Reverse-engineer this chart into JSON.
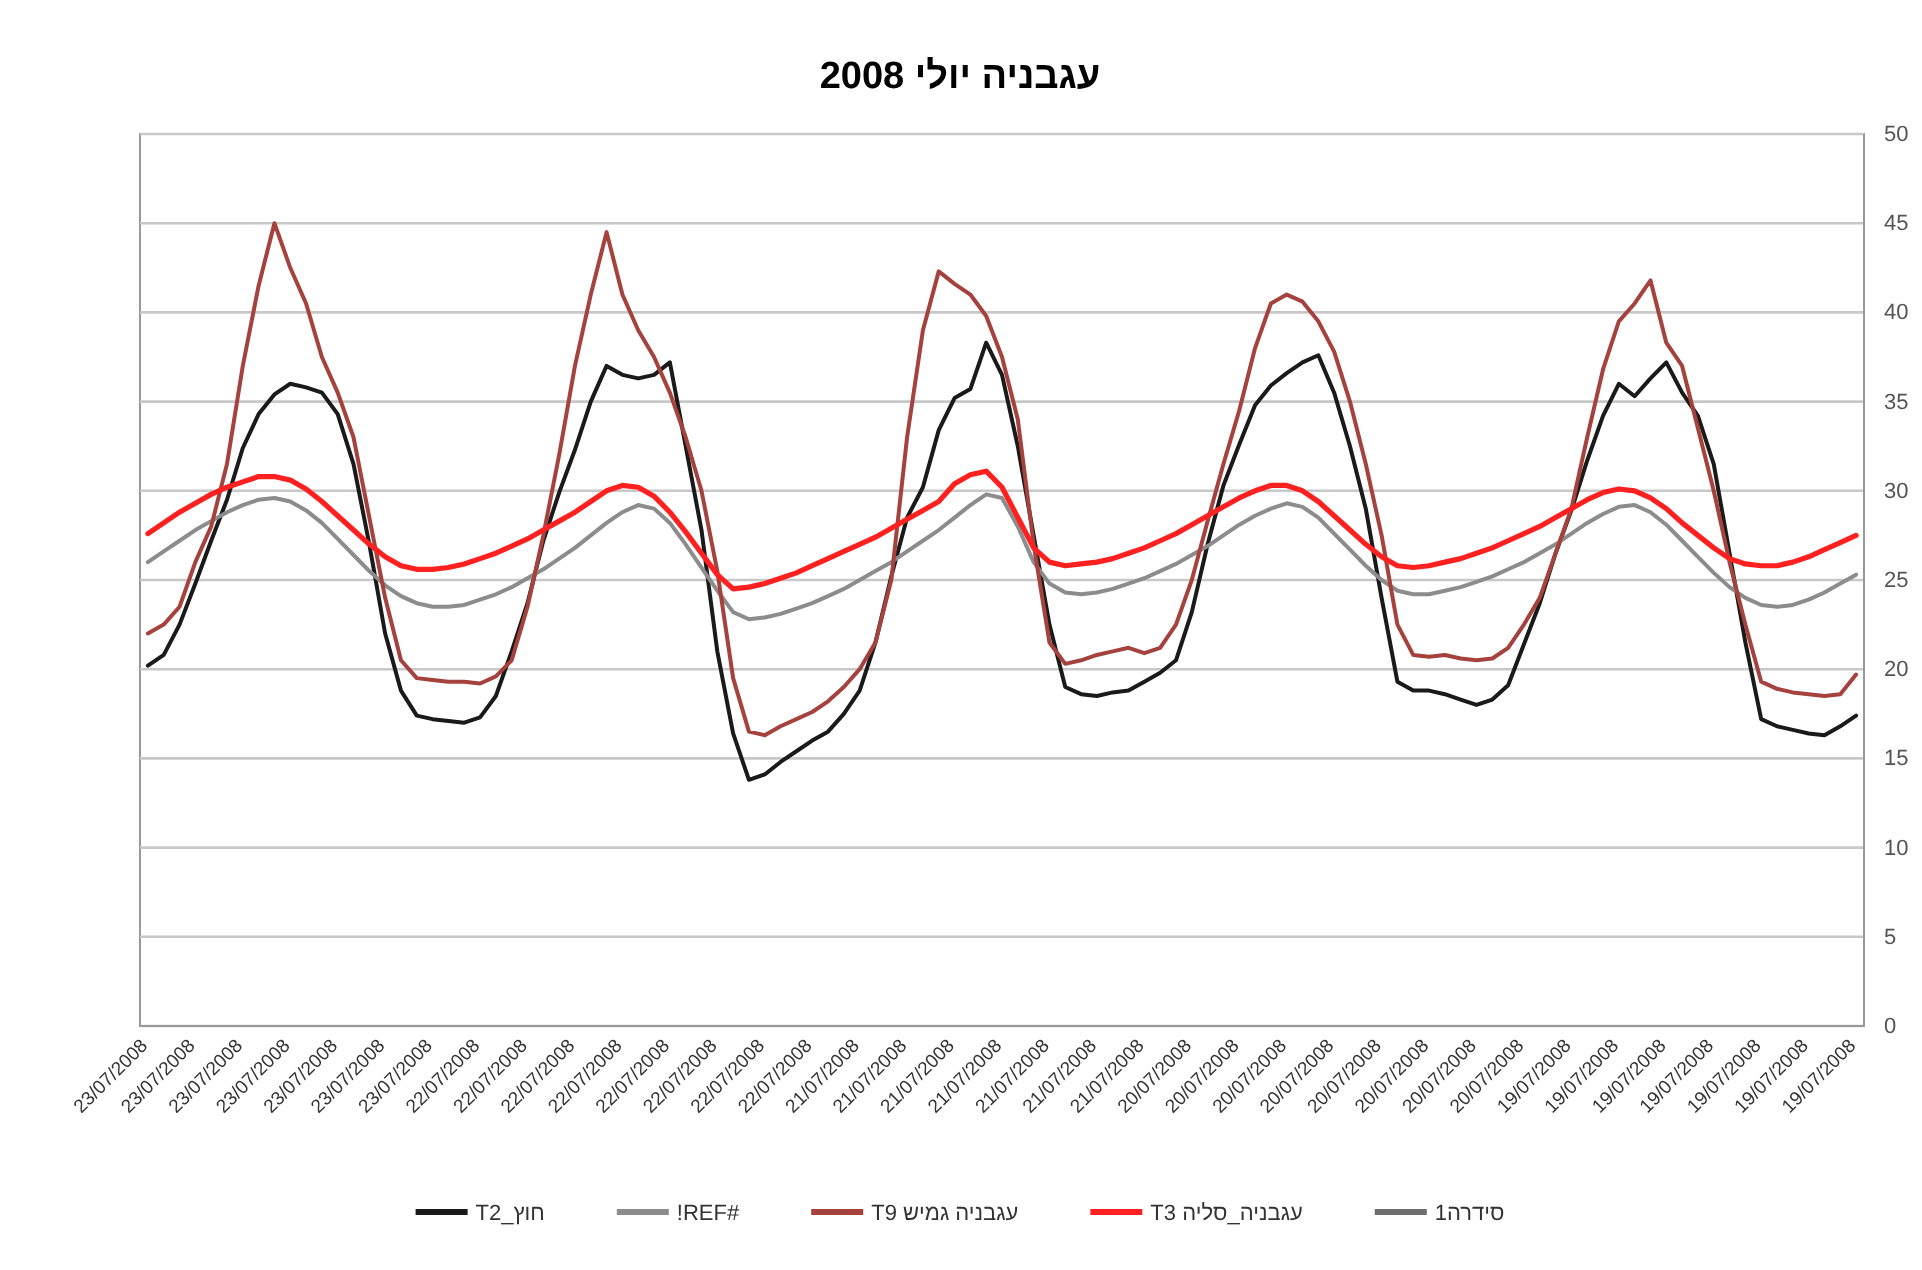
{
  "chart_data": {
    "type": "line",
    "title": "עגבניה יולי 2008",
    "categories": [
      "23/07/2008",
      null,
      null,
      "23/07/2008",
      null,
      null,
      "23/07/2008",
      null,
      null,
      "23/07/2008",
      null,
      null,
      "23/07/2008",
      null,
      null,
      "23/07/2008",
      null,
      null,
      "23/07/2008",
      null,
      null,
      "22/07/2008",
      null,
      null,
      "22/07/2008",
      null,
      null,
      "22/07/2008",
      null,
      null,
      "22/07/2008",
      null,
      null,
      "22/07/2008",
      null,
      null,
      "22/07/2008",
      null,
      null,
      "22/07/2008",
      null,
      null,
      "22/07/2008",
      null,
      null,
      "21/07/2008",
      null,
      null,
      "21/07/2008",
      null,
      null,
      "21/07/2008",
      null,
      null,
      "21/07/2008",
      null,
      null,
      "21/07/2008",
      null,
      null,
      "21/07/2008",
      null,
      null,
      "21/07/2008",
      null,
      null,
      "20/07/2008",
      null,
      null,
      "20/07/2008",
      null,
      null,
      "20/07/2008",
      null,
      null,
      "20/07/2008",
      null,
      null,
      "20/07/2008",
      null,
      null,
      "20/07/2008",
      null,
      null,
      "20/07/2008",
      null,
      null,
      "20/07/2008",
      null,
      null,
      "19/07/2008",
      null,
      null,
      "19/07/2008",
      null,
      null,
      "19/07/2008",
      null,
      null,
      "19/07/2008",
      null,
      null,
      "19/07/2008",
      null,
      null,
      "19/07/2008",
      null,
      null,
      "19/07/2008"
    ],
    "series": [
      {
        "name": "חוץ_T2",
        "color": "#1a1a1a",
        "values": [
          20.2,
          20.8,
          22.5,
          24.8,
          27.2,
          29.5,
          32.4,
          34.3,
          35.4,
          36.0,
          35.8,
          35.5,
          34.3,
          31.5,
          27,
          22,
          18.8,
          17.4,
          17.2,
          17.1,
          17,
          17.3,
          18.5,
          21,
          23.7,
          27.2,
          29.9,
          32.3,
          35,
          37,
          36.5,
          36.3,
          36.5,
          37.2,
          32.5,
          27.8,
          21,
          16.4,
          13.8,
          14.1,
          14.8,
          15.4,
          16,
          16.5,
          17.5,
          18.8,
          21.5,
          25.2,
          28.5,
          30.2,
          33.4,
          35.2,
          35.7,
          38.3,
          36.5,
          32.5,
          27.5,
          22.5,
          19,
          18.6,
          18.5,
          18.7,
          18.8,
          19.3,
          19.8,
          20.5,
          23.2,
          27,
          30.3,
          32.6,
          34.8,
          35.9,
          36.6,
          37.2,
          37.6,
          35.5,
          32.5,
          29,
          24,
          19.3,
          18.8,
          18.8,
          18.6,
          18.3,
          18,
          18.3,
          19.1,
          21.4,
          23.7,
          26.5,
          28.9,
          31.7,
          34.2,
          36,
          35.3,
          36.3,
          37.2,
          35.5,
          34.2,
          31.5,
          26.5,
          21.5,
          17.2,
          16.8,
          16.6,
          16.4,
          16.3,
          16.8,
          17.4
        ]
      },
      {
        "name": "#REF!",
        "color": "#8c8c8c",
        "values": [
          26,
          26.6,
          27.2,
          27.8,
          28.3,
          28.8,
          29.2,
          29.5,
          29.6,
          29.4,
          28.9,
          28.2,
          27.3,
          26.4,
          25.5,
          24.7,
          24.1,
          23.7,
          23.5,
          23.5,
          23.6,
          23.9,
          24.2,
          24.6,
          25.1,
          25.6,
          26.2,
          26.8,
          27.5,
          28.2,
          28.8,
          29.2,
          29,
          28.2,
          27,
          25.7,
          24.4,
          23.2,
          22.8,
          22.9,
          23.1,
          23.4,
          23.7,
          24.1,
          24.5,
          25,
          25.5,
          26,
          26.6,
          27.2,
          27.8,
          28.5,
          29.2,
          29.8,
          29.6,
          28,
          26,
          24.8,
          24.3,
          24.2,
          24.3,
          24.5,
          24.8,
          25.1,
          25.5,
          25.9,
          26.4,
          26.9,
          27.5,
          28.1,
          28.6,
          29,
          29.3,
          29.1,
          28.5,
          27.6,
          26.7,
          25.8,
          25,
          24.4,
          24.2,
          24.2,
          24.4,
          24.6,
          24.9,
          25.2,
          25.6,
          26,
          26.5,
          27,
          27.6,
          28.2,
          28.7,
          29.1,
          29.2,
          28.8,
          28.1,
          27.2,
          26.3,
          25.4,
          24.6,
          24,
          23.6,
          23.5,
          23.6,
          23.9,
          24.3,
          24.8,
          25.3
        ]
      },
      {
        "name": "עגבניה גמיש T9",
        "color": "#a5423e",
        "values": [
          22,
          22.5,
          23.5,
          26,
          28,
          31.5,
          37,
          41.5,
          45,
          42.5,
          40.5,
          37.5,
          35.5,
          33,
          28.5,
          24,
          20.5,
          19.5,
          19.4,
          19.3,
          19.3,
          19.2,
          19.6,
          20.5,
          23.5,
          27.5,
          32,
          37,
          41,
          44.5,
          41,
          39,
          37.5,
          35.5,
          33,
          30,
          25.5,
          19.5,
          16.5,
          16.3,
          16.8,
          17.2,
          17.6,
          18.2,
          19,
          20,
          21.5,
          25,
          33,
          39,
          42.3,
          41.6,
          41,
          39.8,
          37.5,
          34,
          27,
          21.5,
          20.3,
          20.5,
          20.8,
          21,
          21.2,
          20.9,
          21.2,
          22.5,
          25,
          28.3,
          31.5,
          34.5,
          38,
          40.5,
          41,
          40.6,
          39.5,
          37.8,
          35,
          31.5,
          27.5,
          22.5,
          20.8,
          20.7,
          20.8,
          20.6,
          20.5,
          20.6,
          21.2,
          22.5,
          24,
          26.5,
          29,
          33,
          36.8,
          39.5,
          40.5,
          41.8,
          38.3,
          37,
          33.5,
          30,
          26,
          22.5,
          19.3,
          18.9,
          18.7,
          18.6,
          18.5,
          18.6,
          19.7
        ]
      },
      {
        "name": "עגבניה_סליה T3",
        "color": "#ff2020",
        "values": [
          27.6,
          28.2,
          28.8,
          29.3,
          29.8,
          30.2,
          30.5,
          30.8,
          30.8,
          30.6,
          30.1,
          29.4,
          28.6,
          27.8,
          27,
          26.3,
          25.8,
          25.6,
          25.6,
          25.7,
          25.9,
          26.2,
          26.5,
          26.9,
          27.3,
          27.8,
          28.3,
          28.8,
          29.4,
          30,
          30.3,
          30.2,
          29.7,
          28.8,
          27.7,
          26.5,
          25.3,
          24.5,
          24.6,
          24.8,
          25.1,
          25.4,
          25.8,
          26.2,
          26.6,
          27,
          27.4,
          27.9,
          28.4,
          28.9,
          29.4,
          30.4,
          30.9,
          31.1,
          30.2,
          28.5,
          26.8,
          26,
          25.8,
          25.9,
          26,
          26.2,
          26.5,
          26.8,
          27.2,
          27.6,
          28.1,
          28.6,
          29.1,
          29.6,
          30,
          30.3,
          30.3,
          30,
          29.4,
          28.6,
          27.8,
          27,
          26.3,
          25.8,
          25.7,
          25.8,
          26,
          26.2,
          26.5,
          26.8,
          27.2,
          27.6,
          28,
          28.5,
          29,
          29.5,
          29.9,
          30.1,
          30,
          29.6,
          29,
          28.2,
          27.5,
          26.8,
          26.2,
          25.9,
          25.8,
          25.8,
          26,
          26.3,
          26.7,
          27.1,
          27.5
        ]
      },
      {
        "name": "סידרה1",
        "color": "#6e6e6e",
        "values": [
          null,
          null,
          null,
          null,
          null,
          null,
          null,
          null,
          null,
          null,
          null,
          null,
          null,
          null,
          null,
          null,
          null,
          null,
          null,
          null,
          null,
          null,
          null,
          null,
          null,
          null,
          null,
          null,
          null,
          null,
          null,
          null,
          null,
          null,
          null,
          null,
          null,
          null,
          null,
          null,
          null,
          null,
          null,
          null,
          null,
          null,
          null,
          null,
          null,
          null,
          null,
          null,
          null,
          null,
          null,
          null,
          null,
          null,
          null,
          null,
          null,
          null,
          null,
          null,
          null,
          null,
          null,
          null,
          null,
          null,
          null,
          null,
          null,
          null,
          null,
          null,
          null,
          null,
          null,
          null,
          null,
          null,
          null,
          null,
          null,
          null,
          null,
          null,
          null,
          null,
          null,
          null,
          null,
          null,
          null,
          null,
          null,
          null,
          null,
          null,
          null,
          null,
          null,
          null,
          null,
          null,
          null,
          null,
          null
        ]
      }
    ],
    "ylim": [
      0,
      50
    ],
    "yticks": [
      0,
      5,
      10,
      15,
      20,
      25,
      30,
      35,
      40,
      45,
      50
    ],
    "grid": "y",
    "legend": "bottom",
    "marker": "none",
    "line_style": "solid"
  }
}
